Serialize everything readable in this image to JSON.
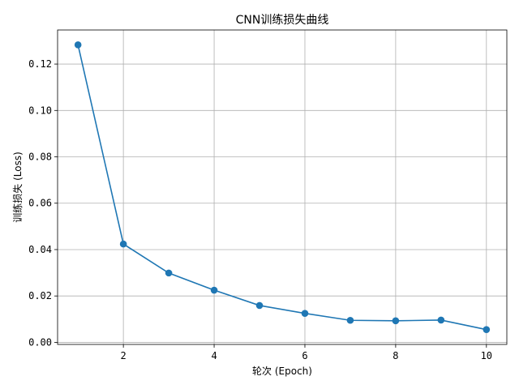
{
  "chart_data": {
    "type": "line",
    "title": "CNN训练损失曲线",
    "xlabel": "轮次 (Epoch)",
    "ylabel": "训练损失 (Loss)",
    "x": [
      1,
      2,
      3,
      4,
      5,
      6,
      7,
      8,
      9,
      10
    ],
    "series": [
      {
        "values": [
          0.1283,
          0.0424,
          0.0299,
          0.0225,
          0.0159,
          0.0125,
          0.0095,
          0.0093,
          0.0096,
          0.0055
        ],
        "color": "#1f77b4",
        "marker": "circle"
      }
    ],
    "xlim": [
      0.55,
      10.45
    ],
    "ylim": [
      -0.0009,
      0.1347
    ],
    "xticks": [
      2,
      4,
      6,
      8,
      10
    ],
    "xtick_labels": [
      "2",
      "4",
      "6",
      "8",
      "10"
    ],
    "yticks": [
      0.0,
      0.02,
      0.04,
      0.06,
      0.08,
      0.1,
      0.12
    ],
    "ytick_labels": [
      "0.00",
      "0.02",
      "0.04",
      "0.06",
      "0.08",
      "0.10",
      "0.12"
    ],
    "grid": true,
    "legend": "none"
  }
}
